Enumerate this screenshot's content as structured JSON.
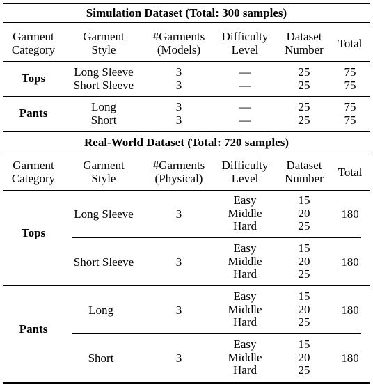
{
  "simulation": {
    "title": "Simulation Dataset (Total: 300 samples)",
    "headers": {
      "category": [
        "Garment",
        "Category"
      ],
      "style": [
        "Garment",
        "Style"
      ],
      "garments": [
        "#Garments",
        "(Models)"
      ],
      "difficulty": [
        "Difficulty",
        "Level"
      ],
      "dataset": [
        "Dataset",
        "Number"
      ],
      "total": "Total"
    },
    "groups": [
      {
        "category": "Tops",
        "rows": [
          {
            "style": "Long Sleeve",
            "garments": "3",
            "difficulty": "—",
            "dataset": "25",
            "total": "75"
          },
          {
            "style": "Short Sleeve",
            "garments": "3",
            "difficulty": "—",
            "dataset": "25",
            "total": "75"
          }
        ]
      },
      {
        "category": "Pants",
        "rows": [
          {
            "style": "Long",
            "garments": "3",
            "difficulty": "—",
            "dataset": "25",
            "total": "75"
          },
          {
            "style": "Short",
            "garments": "3",
            "difficulty": "—",
            "dataset": "25",
            "total": "75"
          }
        ]
      }
    ]
  },
  "real_world": {
    "title": "Real-World Dataset (Total: 720 samples)",
    "headers": {
      "category": [
        "Garment",
        "Category"
      ],
      "style": [
        "Garment",
        "Style"
      ],
      "garments": [
        "#Garments",
        "(Physical)"
      ],
      "difficulty": [
        "Difficulty",
        "Level"
      ],
      "dataset": [
        "Dataset",
        "Number"
      ],
      "total": "Total"
    },
    "groups": [
      {
        "category": "Tops",
        "rows": [
          {
            "style": "Long Sleeve",
            "garments": "3",
            "difficulty": [
              "Easy",
              "Middle",
              "Hard"
            ],
            "dataset": [
              "15",
              "20",
              "25"
            ],
            "total": "180"
          },
          {
            "style": "Short Sleeve",
            "garments": "3",
            "difficulty": [
              "Easy",
              "Middle",
              "Hard"
            ],
            "dataset": [
              "15",
              "20",
              "25"
            ],
            "total": "180"
          }
        ]
      },
      {
        "category": "Pants",
        "rows": [
          {
            "style": "Long",
            "garments": "3",
            "difficulty": [
              "Easy",
              "Middle",
              "Hard"
            ],
            "dataset": [
              "15",
              "20",
              "25"
            ],
            "total": "180"
          },
          {
            "style": "Short",
            "garments": "3",
            "difficulty": [
              "Easy",
              "Middle",
              "Hard"
            ],
            "dataset": [
              "15",
              "20",
              "25"
            ],
            "total": "180"
          }
        ]
      }
    ]
  }
}
